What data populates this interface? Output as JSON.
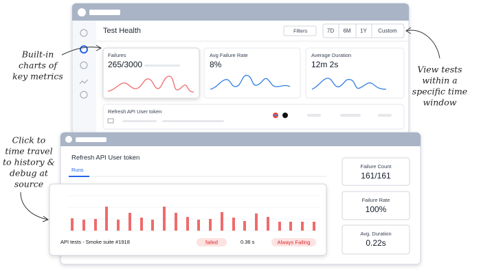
{
  "annotations": {
    "metrics": [
      "Built-in",
      "charts of",
      "key metrics"
    ],
    "time_window": [
      "View tests",
      "within a",
      "specific time",
      "window"
    ],
    "time_travel": [
      "Click to",
      "time travel",
      "to history &",
      "debug at",
      "source"
    ]
  },
  "dashboard": {
    "title": "Test Health",
    "filters": "Filters",
    "ranges": [
      "7D",
      "6M",
      "1Y",
      "Custom"
    ],
    "cards": [
      {
        "label": "Failures",
        "value": "265/3000"
      },
      {
        "label": "Avg Failure Rate",
        "value": "8%"
      },
      {
        "label": "Average Duration",
        "value": "12m 2s"
      }
    ],
    "row": "Refresh API User token"
  },
  "detail": {
    "title": "Refresh API User token",
    "tab": "Runs",
    "stats": [
      {
        "label": "Failure Count",
        "value": "161/161"
      },
      {
        "label": "Failure Rate",
        "value": "100%"
      },
      {
        "label": "Avg. Duration",
        "value": "0.22s"
      }
    ],
    "run": {
      "name": "API tests - Smoke suite #1918",
      "status": "failed",
      "duration": "0.36 s",
      "flag": "Always Failing"
    }
  }
}
